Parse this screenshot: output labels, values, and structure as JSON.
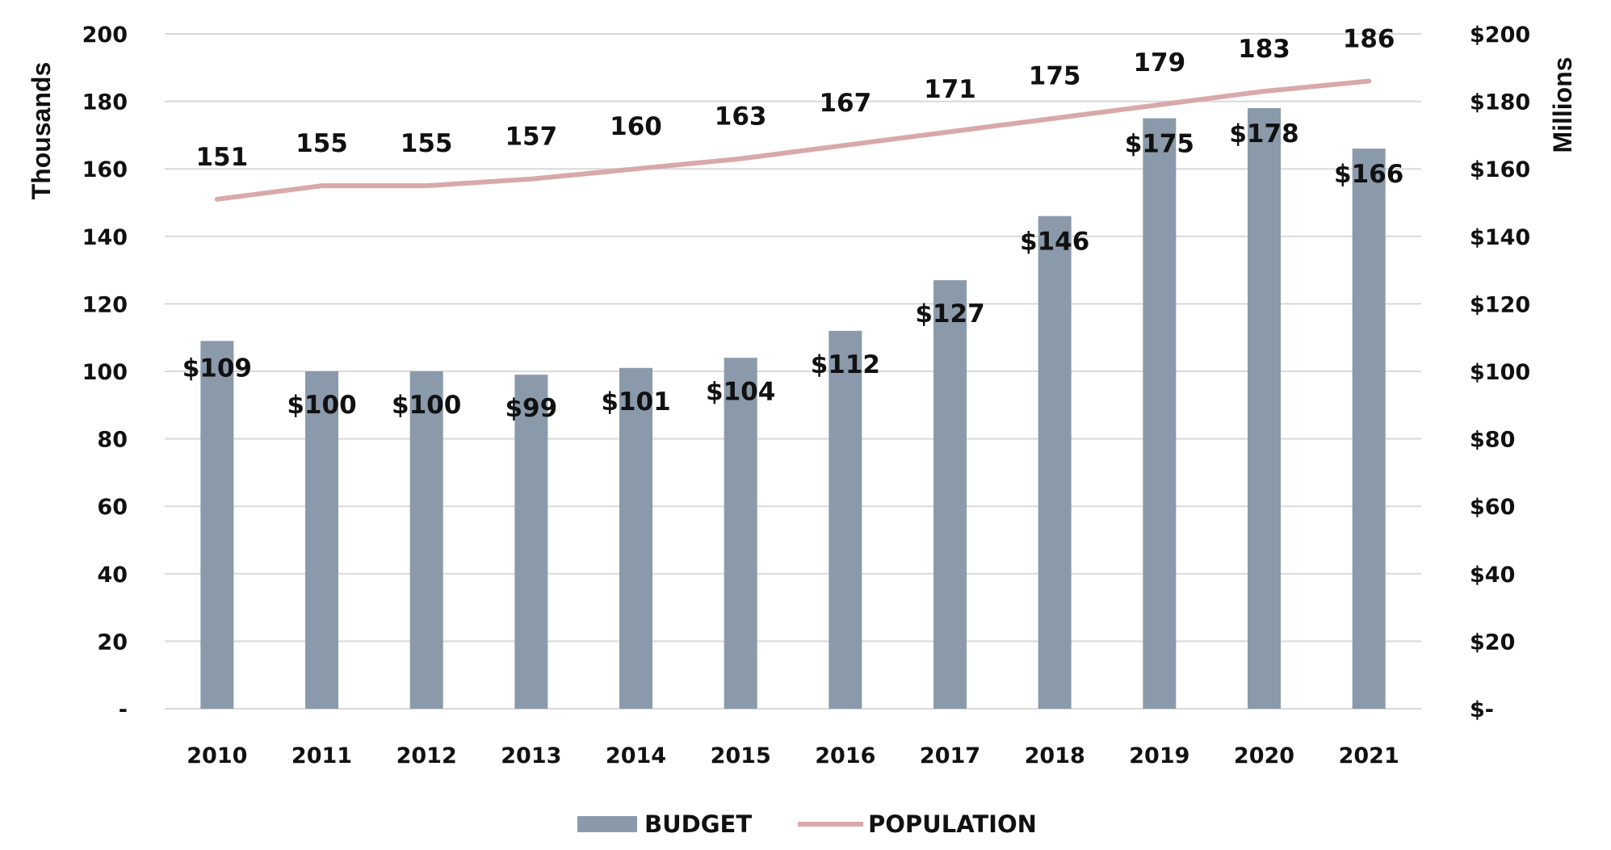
{
  "chart_data": {
    "type": "bar+line",
    "categories": [
      "2010",
      "2011",
      "2012",
      "2013",
      "2014",
      "2015",
      "2016",
      "2017",
      "2018",
      "2019",
      "2020",
      "2021"
    ],
    "series": [
      {
        "name": "BUDGET",
        "type": "bar",
        "axis": "right",
        "values": [
          109,
          100,
          100,
          99,
          101,
          104,
          112,
          127,
          146,
          175,
          178,
          166
        ],
        "labels": [
          "$109",
          "$100",
          "$100",
          "$99",
          "$101",
          "$104",
          "$112",
          "$127",
          "$146",
          "$175",
          "$178",
          "$166"
        ],
        "color": "#8a9aab"
      },
      {
        "name": "POPULATION",
        "type": "line",
        "axis": "left",
        "values": [
          151,
          155,
          155,
          157,
          160,
          163,
          167,
          171,
          175,
          179,
          183,
          186
        ],
        "labels": [
          "151",
          "155",
          "155",
          "157",
          "160",
          "163",
          "167",
          "171",
          "175",
          "179",
          "183",
          "186"
        ],
        "color": "#d9a9aa"
      }
    ],
    "ylabel": "Thousands",
    "y2label": "Millions",
    "ylim": [
      0,
      200
    ],
    "y2lim": [
      0,
      200
    ],
    "yticks": [
      "-",
      "20",
      "40",
      "60",
      "80",
      "100",
      "120",
      "140",
      "160",
      "180",
      "200"
    ],
    "y2ticks": [
      "$-",
      "$20",
      "$40",
      "$60",
      "$80",
      "$100",
      "$120",
      "$140",
      "$160",
      "$180",
      "$200"
    ],
    "grid": true,
    "legend": "bottom-center",
    "legend_entries": [
      "BUDGET",
      "POPULATION"
    ]
  }
}
